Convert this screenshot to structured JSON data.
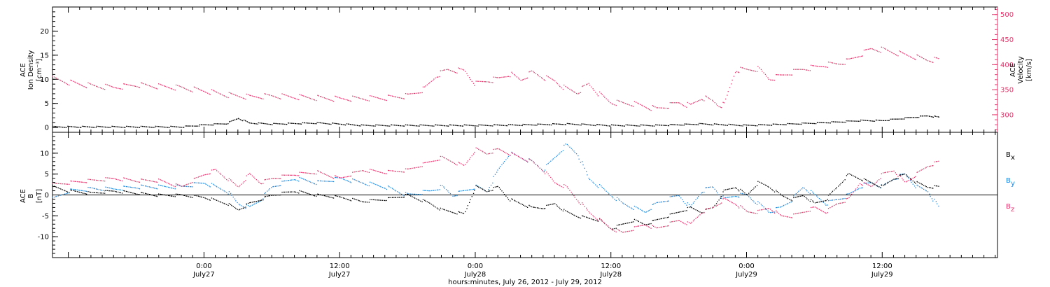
{
  "x_axis": {
    "title": "hours:minutes, July 26, 2012 - July 29, 2012",
    "ticks": [
      {
        "t": 14,
        "time": "0:00",
        "date": "July27"
      },
      {
        "t": 26,
        "time": "12:00",
        "date": "July27"
      },
      {
        "t": 38,
        "time": "0:00",
        "date": "July28"
      },
      {
        "t": 50,
        "time": "12:00",
        "date": "July28"
      },
      {
        "t": 62,
        "time": "0:00",
        "date": "July29"
      },
      {
        "t": 74,
        "time": "12:00",
        "date": "July29"
      }
    ],
    "range": [
      0.6,
      84.2
    ]
  },
  "colors": {
    "black": "#000000",
    "pink": "#e8336b",
    "blue": "#1a86e0"
  },
  "chart_data": [
    {
      "type": "scatter",
      "panel": "top",
      "ylabel_left": [
        "ACE",
        "Ion Density",
        "[cm⁻³]"
      ],
      "ylabel_right": [
        "ACE",
        "Velocity",
        "[km/s]"
      ],
      "ylim_left": [
        -1,
        25
      ],
      "yticks_left": [
        "0",
        "5",
        "10",
        "15",
        "20"
      ],
      "yticks_left_values": [
        0,
        5,
        10,
        15,
        20
      ],
      "ylim_right": [
        265,
        515
      ],
      "yticks_right": [
        "300",
        "350",
        "400",
        "450",
        "500"
      ],
      "yticks_right_values": [
        300,
        350,
        400,
        450,
        500
      ],
      "series": [
        {
          "role": "velocity",
          "axis": "right",
          "color": "#e8336b",
          "x": [
            0.6,
            2,
            4,
            6,
            8,
            10,
            12,
            14,
            16,
            18,
            20,
            22,
            24,
            26,
            28,
            30,
            32,
            33.5,
            34.5,
            35.5,
            37,
            38,
            39,
            40,
            41,
            42,
            43,
            44,
            45,
            46,
            47,
            48,
            49,
            50,
            52,
            54,
            55,
            56,
            57,
            58,
            59,
            59.5,
            60,
            61,
            62,
            63,
            64,
            65,
            66,
            67,
            68,
            69,
            70,
            71,
            72,
            73,
            74,
            75,
            76,
            77,
            78,
            79
          ],
          "y": [
            372,
            365,
            358,
            355,
            360,
            357,
            354,
            348,
            340,
            336,
            338,
            336,
            334,
            332,
            333,
            334,
            338,
            352,
            378,
            390,
            388,
            362,
            368,
            372,
            382,
            370,
            385,
            375,
            368,
            352,
            345,
            362,
            340,
            325,
            322,
            312,
            318,
            325,
            318,
            335,
            328,
            320,
            320,
            390,
            390,
            392,
            372,
            378,
            385,
            392,
            395,
            400,
            402,
            408,
            420,
            432,
            430,
            425,
            420,
            415,
            410,
            410
          ]
        },
        {
          "role": "ion density",
          "axis": "left",
          "color": "#000000",
          "x": [
            0.6,
            4,
            8,
            12,
            14,
            16,
            17,
            18,
            20,
            24,
            26,
            28,
            30,
            34,
            38,
            42,
            46,
            50,
            54,
            58,
            62,
            66,
            68,
            70,
            72,
            74,
            76,
            78,
            79
          ],
          "y": [
            0.2,
            0.2,
            0.2,
            0.2,
            0.6,
            0.9,
            2.0,
            1.0,
            0.8,
            1.0,
            0.8,
            0.5,
            0.5,
            0.5,
            0.5,
            0.6,
            0.8,
            0.5,
            0.5,
            0.8,
            0.5,
            0.8,
            1.0,
            1.2,
            1.5,
            1.5,
            2.0,
            2.5,
            2.2
          ]
        }
      ]
    },
    {
      "type": "scatter",
      "panel": "bottom",
      "ylabel_left": [
        "ACE",
        "B",
        "[nT]"
      ],
      "ylim": [
        -15,
        15
      ],
      "yticks": [
        "-10",
        "-5",
        "0",
        "5",
        "10"
      ],
      "yticks_values": [
        -10,
        -5,
        0,
        5,
        10
      ],
      "zero_line": true,
      "series": [
        {
          "name": "Bx",
          "label_main": "B",
          "label_sub": "x",
          "color": "#000000",
          "x": [
            0.6,
            2,
            4,
            6,
            8,
            10,
            12,
            14,
            16,
            17,
            18,
            19,
            20,
            22,
            24,
            26,
            28,
            30,
            32,
            34,
            35,
            36,
            37,
            38,
            39,
            40,
            41,
            42,
            43,
            44,
            45,
            46,
            47,
            48,
            49,
            50,
            51,
            52,
            53,
            54,
            55,
            56,
            57,
            58,
            59,
            60,
            61,
            62,
            63,
            64,
            65,
            66,
            67,
            68,
            69,
            70,
            71,
            72,
            73,
            74,
            75,
            76,
            77,
            78,
            79
          ],
          "y": [
            2,
            1,
            0.5,
            1,
            0.5,
            0,
            0,
            -0.5,
            -2,
            -3.5,
            -2,
            -1,
            0,
            1,
            0,
            -0.5,
            -1.5,
            -1,
            0,
            -2,
            -3.5,
            -4,
            -4.5,
            2,
            1,
            2,
            -1,
            -2,
            -3,
            -3,
            -2,
            -4,
            -5,
            -5.5,
            -6,
            -8,
            -7,
            -6,
            -7,
            -6,
            -5,
            -4,
            -3,
            -4,
            -3,
            1,
            2,
            0,
            3,
            2,
            0,
            -1,
            0,
            -2,
            -1,
            2,
            5,
            4,
            3,
            2,
            4,
            5,
            3,
            2,
            2
          ]
        },
        {
          "name": "By",
          "label_main": "B",
          "label_sub": "y",
          "color": "#1a86e0",
          "x": [
            0.6,
            2,
            4,
            6,
            8,
            10,
            12,
            14,
            16,
            17,
            18,
            19,
            20,
            22,
            24,
            26,
            28,
            30,
            32,
            34,
            35,
            36,
            37,
            38,
            39,
            40,
            41,
            42,
            43,
            44,
            45,
            46,
            47,
            48,
            49,
            50,
            51,
            52,
            53,
            54,
            55,
            56,
            57,
            58,
            59,
            60,
            61,
            62,
            63,
            64,
            65,
            66,
            67,
            68,
            69,
            70,
            71,
            72,
            73,
            74,
            75,
            76,
            77,
            78,
            79
          ],
          "y": [
            -1,
            1,
            1.5,
            1.5,
            2,
            2,
            2,
            3,
            1,
            -2,
            -3,
            -1,
            2,
            4,
            3,
            4,
            3,
            2,
            0,
            1,
            2,
            0,
            1,
            2,
            1,
            6,
            10,
            9,
            8,
            6,
            9,
            12,
            10,
            4,
            2,
            0,
            -2,
            -3,
            -4,
            -2,
            -1,
            0,
            -3,
            1,
            2,
            -1,
            0,
            0,
            -2,
            -4,
            -3,
            -1,
            2,
            0,
            -2,
            -1,
            0,
            2,
            3,
            2,
            4,
            5,
            2,
            1,
            -3
          ]
        },
        {
          "name": "Bz",
          "label_main": "B",
          "label_sub": "z",
          "color": "#e8336b",
          "x": [
            0.6,
            2,
            4,
            6,
            8,
            10,
            12,
            14,
            15,
            16,
            17,
            18,
            19,
            20,
            22,
            24,
            26,
            28,
            30,
            32,
            34,
            35,
            36,
            37,
            38,
            39,
            40,
            41,
            42,
            43,
            44,
            45,
            46,
            47,
            48,
            49,
            50,
            51,
            52,
            53,
            54,
            55,
            56,
            57,
            58,
            59,
            60,
            61,
            62,
            63,
            64,
            65,
            66,
            67,
            68,
            69,
            70,
            71,
            72,
            73,
            74,
            75,
            76,
            77,
            78,
            79
          ],
          "y": [
            2.5,
            3,
            3.5,
            4,
            3.5,
            3.5,
            2,
            5,
            6,
            4,
            2,
            5,
            3,
            4,
            5,
            5.5,
            4,
            6,
            5.5,
            6,
            8,
            9,
            8,
            7,
            11,
            10,
            11,
            10,
            9,
            8,
            6,
            3,
            2,
            -1,
            -4,
            -6,
            -8,
            -9,
            -8,
            -7,
            -8,
            -7,
            -6,
            -7,
            -4,
            -3,
            -1,
            -2,
            -4,
            -4,
            -3,
            -5,
            -5,
            -4,
            -3,
            -4,
            -2,
            -1,
            3,
            2,
            5,
            6,
            3,
            5,
            7,
            8
          ]
        }
      ]
    }
  ]
}
